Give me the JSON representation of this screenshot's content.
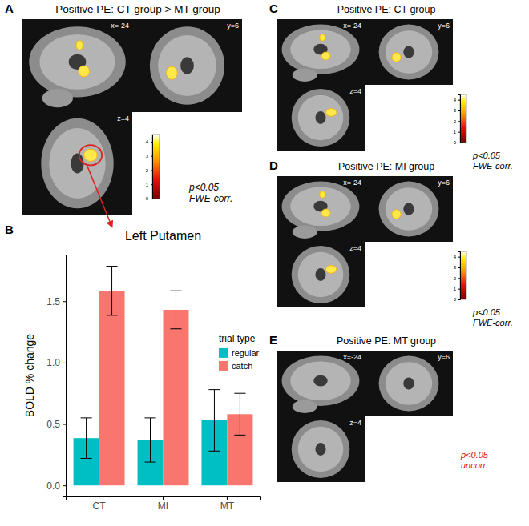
{
  "chart_data": {
    "type": "bar",
    "panel_label": "B",
    "title": "Left Putamen",
    "y_label": "BOLD % change",
    "categories": [
      "CT",
      "MI",
      "MT"
    ],
    "series": [
      {
        "name": "regular",
        "color": "#00BFC4",
        "values": [
          0.385,
          0.37,
          0.53
        ],
        "errors": [
          0.165,
          0.18,
          0.25
        ]
      },
      {
        "name": "catch",
        "color": "#F8766D",
        "values": [
          1.585,
          1.43,
          0.58
        ],
        "errors": [
          0.2,
          0.155,
          0.17
        ]
      }
    ],
    "legend_title": "trial type",
    "legend": "right",
    "ylim": [
      -0.09,
      1.88
    ],
    "yticks": [
      {
        "value": 0,
        "label": "0.0"
      },
      0.5,
      {
        "value": 1,
        "label": "1.0"
      },
      1.5
    ],
    "grid": false
  },
  "brain_panels": [
    {
      "label": "A",
      "title": "Positive PE: CT group > MT group",
      "views": [
        "x=-24",
        "y=6",
        "z=4"
      ],
      "colorbar": {
        "range": [
          0,
          4.5
        ],
        "ticks": [
          0,
          1,
          2,
          3,
          4
        ]
      },
      "threshold": "p<0.05",
      "correction": "FWE-corr.",
      "color": "#000000"
    },
    {
      "label": "C",
      "title": "Positive PE: CT group",
      "views": [
        "x=-24",
        "y=6",
        "z=4"
      ],
      "colorbar": {
        "range": [
          0,
          4.5
        ],
        "ticks": [
          0,
          1,
          2,
          3,
          4
        ]
      },
      "threshold": "p<0.05",
      "correction": "FWE-corr.",
      "color": "#000000"
    },
    {
      "label": "D",
      "title": "Positive PE: MI group",
      "views": [
        "x=-24",
        "y=6",
        "z=4"
      ],
      "colorbar": {
        "range": [
          0,
          4.5
        ],
        "ticks": [
          0,
          1,
          2,
          3,
          4
        ]
      },
      "threshold": "p<0.05",
      "correction": "FWE-corr.",
      "color": "#000000"
    },
    {
      "label": "E",
      "title": "Positive PE: MT group",
      "views": [
        "x=-24",
        "y=6",
        "z=4"
      ],
      "threshold": "p<0.05",
      "correction": "uncorr.",
      "color": "#dd1111"
    }
  ]
}
